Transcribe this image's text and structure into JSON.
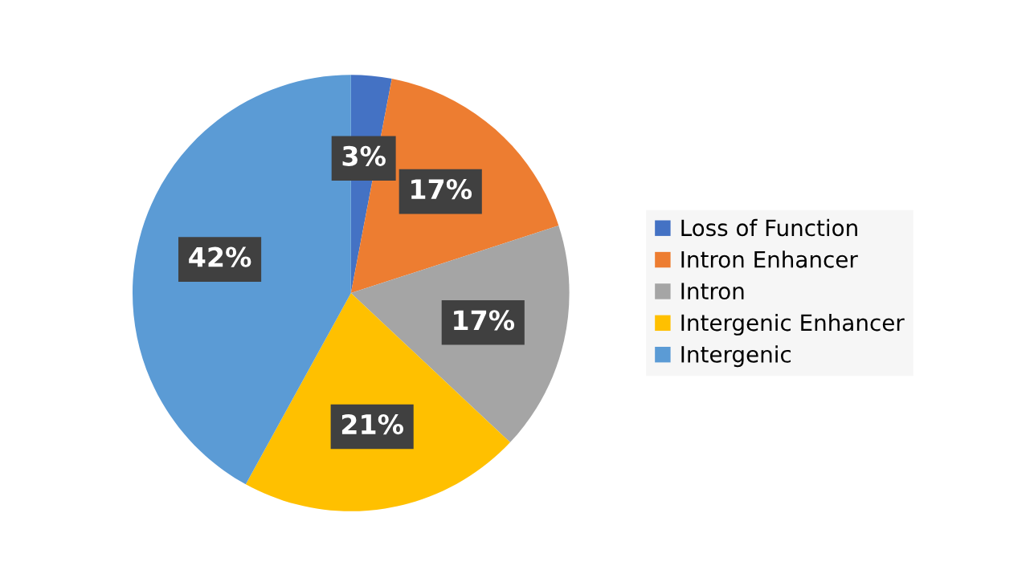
{
  "chart_data": {
    "type": "pie",
    "categories": [
      "Loss of Function",
      "Intron Enhancer",
      "Intron",
      "Intergenic Enhancer",
      "Intergenic"
    ],
    "values": [
      3,
      17,
      17,
      21,
      42
    ],
    "colors": [
      "#4472c4",
      "#ed7d31",
      "#a5a5a5",
      "#ffc000",
      "#5b9bd5"
    ],
    "value_labels": [
      "3%",
      "17%",
      "17%",
      "21%",
      "42%"
    ],
    "legend": "right"
  }
}
